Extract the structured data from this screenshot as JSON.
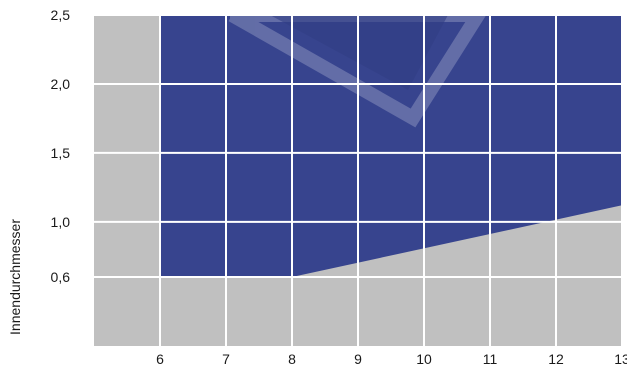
{
  "chart_data": {
    "type": "area",
    "title": "",
    "xlabel": "",
    "ylabel": "Innendurchmesser",
    "x_ticks": [
      {
        "value": 6,
        "label": "6"
      },
      {
        "value": 7,
        "label": "7"
      },
      {
        "value": 8,
        "label": "8"
      },
      {
        "value": 9,
        "label": "9"
      },
      {
        "value": 10,
        "label": "10"
      },
      {
        "value": 11,
        "label": "11"
      },
      {
        "value": 12,
        "label": "12"
      },
      {
        "value": 13,
        "label": "13"
      }
    ],
    "y_ticks": [
      {
        "value": 0.6,
        "label": "0,6"
      },
      {
        "value": 1.0,
        "label": "1,0"
      },
      {
        "value": 1.5,
        "label": "1,5"
      },
      {
        "value": 2.0,
        "label": "2,0"
      },
      {
        "value": 2.5,
        "label": "2,5"
      }
    ],
    "xlim": [
      5,
      13
    ],
    "ylim": [
      0.1,
      2.5
    ],
    "grid": true,
    "region": {
      "name": "",
      "color": "#37448e",
      "points": [
        {
          "x": 6,
          "y": 0.6
        },
        {
          "x": 8,
          "y": 0.6
        },
        {
          "x": 13,
          "y": 1.12
        },
        {
          "x": 13,
          "y": 2.5
        },
        {
          "x": 6,
          "y": 2.5
        }
      ]
    },
    "colors": {
      "plot_background": "#c0c0c0",
      "grid": "#ffffff",
      "region": "#37448e",
      "watermark": "#ffffff"
    }
  }
}
